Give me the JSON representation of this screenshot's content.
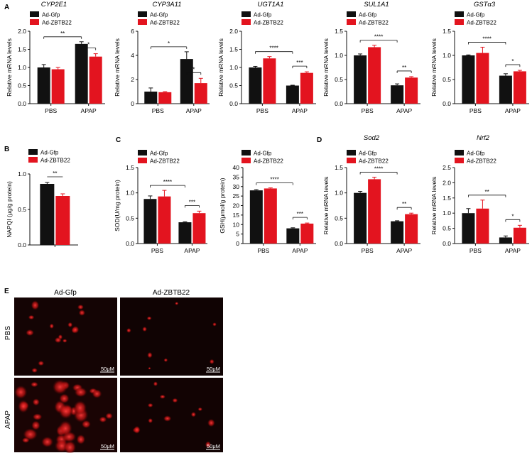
{
  "colors": {
    "gfp": "#111111",
    "zbtb22": "#e3141f",
    "axis": "#111111",
    "micro_bg": "#120303"
  },
  "legend": {
    "gfp": "Ad-Gfp",
    "zbtb22": "Ad-ZBTB22"
  },
  "panel_letters": {
    "A": "A",
    "B": "B",
    "C": "C",
    "D": "D",
    "E": "E"
  },
  "chart_data": [
    {
      "id": "cyp2e1",
      "type": "bar",
      "title": "CYP2E1",
      "ylabel": "Relative mRNA levels",
      "ylim": [
        0,
        2.0
      ],
      "yticks": [
        0.0,
        0.5,
        1.0,
        1.5,
        2.0
      ],
      "categories": [
        "PBS",
        "APAP"
      ],
      "series": [
        {
          "name": "Ad-Gfp",
          "values": [
            1.0,
            1.65
          ],
          "errors": [
            0.08,
            0.06
          ]
        },
        {
          "name": "Ad-ZBTB22",
          "values": [
            0.95,
            1.3
          ],
          "errors": [
            0.05,
            0.08
          ]
        }
      ],
      "significance": [
        "**",
        "*"
      ]
    },
    {
      "id": "cyp3a11",
      "type": "bar",
      "title": "CYP3A11",
      "ylabel": "Relative mRNA levels",
      "ylim": [
        0,
        6
      ],
      "yticks": [
        0,
        2,
        4,
        6
      ],
      "categories": [
        "PBS",
        "APAP"
      ],
      "series": [
        {
          "name": "Ad-Gfp",
          "values": [
            1.0,
            3.7
          ],
          "errors": [
            0.3,
            0.6
          ]
        },
        {
          "name": "Ad-ZBTB22",
          "values": [
            0.95,
            1.7
          ],
          "errors": [
            0.05,
            0.4
          ]
        }
      ],
      "significance": [
        "*",
        "*"
      ]
    },
    {
      "id": "ugt1a1",
      "type": "bar",
      "title": "UGT1A1",
      "ylabel": "Relative mRNA levels",
      "ylim": [
        0,
        2.0
      ],
      "yticks": [
        0.0,
        0.5,
        1.0,
        1.5,
        2.0
      ],
      "categories": [
        "PBS",
        "APAP"
      ],
      "series": [
        {
          "name": "Ad-Gfp",
          "values": [
            1.0,
            0.5
          ],
          "errors": [
            0.03,
            0.01
          ]
        },
        {
          "name": "Ad-ZBTB22",
          "values": [
            1.25,
            0.85
          ],
          "errors": [
            0.05,
            0.03
          ]
        }
      ],
      "significance": [
        "****",
        "***"
      ]
    },
    {
      "id": "sul1a1",
      "type": "bar",
      "title": "SUL1A1",
      "ylabel": "Relative mRNA levels",
      "ylim": [
        0,
        1.5
      ],
      "yticks": [
        0.0,
        0.5,
        1.0,
        1.5
      ],
      "categories": [
        "PBS",
        "APAP"
      ],
      "series": [
        {
          "name": "Ad-Gfp",
          "values": [
            1.0,
            0.38
          ],
          "errors": [
            0.03,
            0.03
          ]
        },
        {
          "name": "Ad-ZBTB22",
          "values": [
            1.17,
            0.54
          ],
          "errors": [
            0.04,
            0.02
          ]
        }
      ],
      "significance": [
        "****",
        "**"
      ]
    },
    {
      "id": "gsta3",
      "type": "bar",
      "title": "GSTα3",
      "ylabel": "Relative mRNA levels",
      "ylim": [
        0,
        1.5
      ],
      "yticks": [
        0.0,
        0.5,
        1.0,
        1.5
      ],
      "categories": [
        "PBS",
        "APAP"
      ],
      "series": [
        {
          "name": "Ad-Gfp",
          "values": [
            1.0,
            0.58
          ],
          "errors": [
            0.01,
            0.04
          ]
        },
        {
          "name": "Ad-ZBTB22",
          "values": [
            1.05,
            0.67
          ],
          "errors": [
            0.12,
            0.02
          ]
        }
      ],
      "significance": [
        "****",
        "*"
      ]
    },
    {
      "id": "napqi",
      "type": "bar",
      "title": "",
      "ylabel": "NAPQI (μg/g protein)",
      "ylim": [
        0,
        1.0
      ],
      "yticks": [
        0.0,
        0.5,
        1.0
      ],
      "categories": [
        ""
      ],
      "series": [
        {
          "name": "Ad-Gfp",
          "values": [
            0.86
          ],
          "errors": [
            0.02
          ]
        },
        {
          "name": "Ad-ZBTB22",
          "values": [
            0.69
          ],
          "errors": [
            0.03
          ]
        }
      ],
      "significance": [
        "**"
      ]
    },
    {
      "id": "sod",
      "type": "bar",
      "title": "",
      "ylabel": "SOD(U/mg protein)",
      "ylim": [
        0,
        1.5
      ],
      "yticks": [
        0.0,
        0.5,
        1.0,
        1.5
      ],
      "categories": [
        "PBS",
        "APAP"
      ],
      "series": [
        {
          "name": "Ad-Gfp",
          "values": [
            0.88,
            0.42
          ],
          "errors": [
            0.06,
            0.01
          ]
        },
        {
          "name": "Ad-ZBTB22",
          "values": [
            0.93,
            0.6
          ],
          "errors": [
            0.12,
            0.04
          ]
        }
      ],
      "significance": [
        "****",
        "***"
      ]
    },
    {
      "id": "gsh",
      "type": "bar",
      "title": "",
      "ylabel": "GSH(μmol/g protein)",
      "ylim": [
        0,
        40
      ],
      "yticks": [
        0,
        5,
        10,
        15,
        20,
        25,
        30,
        35,
        40
      ],
      "categories": [
        "PBS",
        "APAP"
      ],
      "series": [
        {
          "name": "Ad-Gfp",
          "values": [
            28.0,
            8.0
          ],
          "errors": [
            0.4,
            0.3
          ]
        },
        {
          "name": "Ad-ZBTB22",
          "values": [
            29.0,
            10.5
          ],
          "errors": [
            0.3,
            0.3
          ]
        }
      ],
      "significance": [
        "****",
        "***"
      ]
    },
    {
      "id": "sod2",
      "type": "bar",
      "title": "Sod2",
      "ylabel": "Relative mRNA levels",
      "ylim": [
        0,
        1.5
      ],
      "yticks": [
        0.0,
        0.5,
        1.0,
        1.5
      ],
      "categories": [
        "PBS",
        "APAP"
      ],
      "series": [
        {
          "name": "Ad-Gfp",
          "values": [
            1.0,
            0.44
          ],
          "errors": [
            0.03,
            0.01
          ]
        },
        {
          "name": "Ad-ZBTB22",
          "values": [
            1.27,
            0.58
          ],
          "errors": [
            0.04,
            0.02
          ]
        }
      ],
      "significance": [
        "****",
        "**"
      ]
    },
    {
      "id": "nrf2",
      "type": "bar",
      "title": "Nrf2",
      "ylabel": "Relative mRNA levels",
      "ylim": [
        0,
        2.5
      ],
      "yticks": [
        0.0,
        0.5,
        1.0,
        1.5,
        2.0,
        2.5
      ],
      "categories": [
        "PBS",
        "APAP"
      ],
      "series": [
        {
          "name": "Ad-Gfp",
          "values": [
            1.0,
            0.2
          ],
          "errors": [
            0.15,
            0.05
          ]
        },
        {
          "name": "Ad-ZBTB22",
          "values": [
            1.15,
            0.52
          ],
          "errors": [
            0.28,
            0.08
          ]
        }
      ],
      "significance": [
        "**",
        "*"
      ]
    }
  ],
  "micrographs": {
    "col_labels": [
      "Ad-Gfp",
      "Ad-ZBTB22"
    ],
    "row_labels": [
      "PBS",
      "APAP"
    ],
    "scale_bar": "50μM"
  }
}
